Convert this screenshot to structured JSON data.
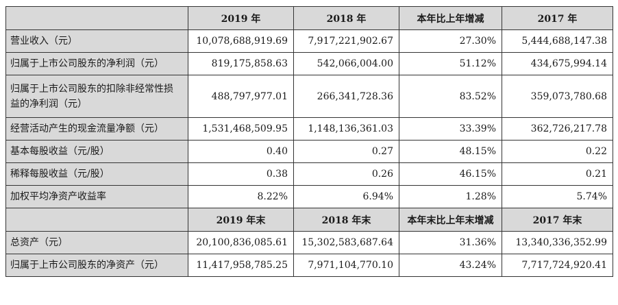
{
  "header1": {
    "col1": "2019 年",
    "col2": "2018 年",
    "col3": "本年比上年增减",
    "col4": "2017 年"
  },
  "rows1": [
    {
      "label": "营业收入（元）",
      "v1": "10,078,688,919.69",
      "v2": "7,917,221,902.67",
      "v3": "27.30%",
      "v4": "5,444,688,147.38"
    },
    {
      "label": "归属于上市公司股东的净利润（元）",
      "v1": "819,175,858.63",
      "v2": "542,066,004.00",
      "v3": "51.12%",
      "v4": "434,675,994.14"
    },
    {
      "label": "归属于上市公司股东的扣除非经常性损益的净利润（元）",
      "v1": "488,797,977.01",
      "v2": "266,341,728.36",
      "v3": "83.52%",
      "v4": "359,073,780.68"
    },
    {
      "label": "经营活动产生的现金流量净额（元）",
      "v1": "1,531,468,509.95",
      "v2": "1,148,136,361.03",
      "v3": "33.39%",
      "v4": "362,726,217.78"
    },
    {
      "label": "基本每股收益（元/股）",
      "v1": "0.40",
      "v2": "0.27",
      "v3": "48.15%",
      "v4": "0.22"
    },
    {
      "label": "稀释每股收益（元/股）",
      "v1": "0.38",
      "v2": "0.26",
      "v3": "46.15%",
      "v4": "0.21"
    },
    {
      "label": "加权平均净资产收益率",
      "v1": "8.22%",
      "v2": "6.94%",
      "v3": "1.28%",
      "v4": "5.74%"
    }
  ],
  "header2": {
    "col1": "2019 年末",
    "col2": "2018 年末",
    "col3": "本年末比上年末增减",
    "col4": "2017 年末"
  },
  "rows2": [
    {
      "label": "总资产（元）",
      "v1": "20,100,836,085.61",
      "v2": "15,302,583,687.64",
      "v3": "31.36%",
      "v4": "13,340,336,352.99"
    },
    {
      "label": "归属于上市公司股东的净资产（元）",
      "v1": "11,417,958,785.25",
      "v2": "7,971,104,770.10",
      "v3": "43.24%",
      "v4": "7,717,724,920.41"
    }
  ]
}
